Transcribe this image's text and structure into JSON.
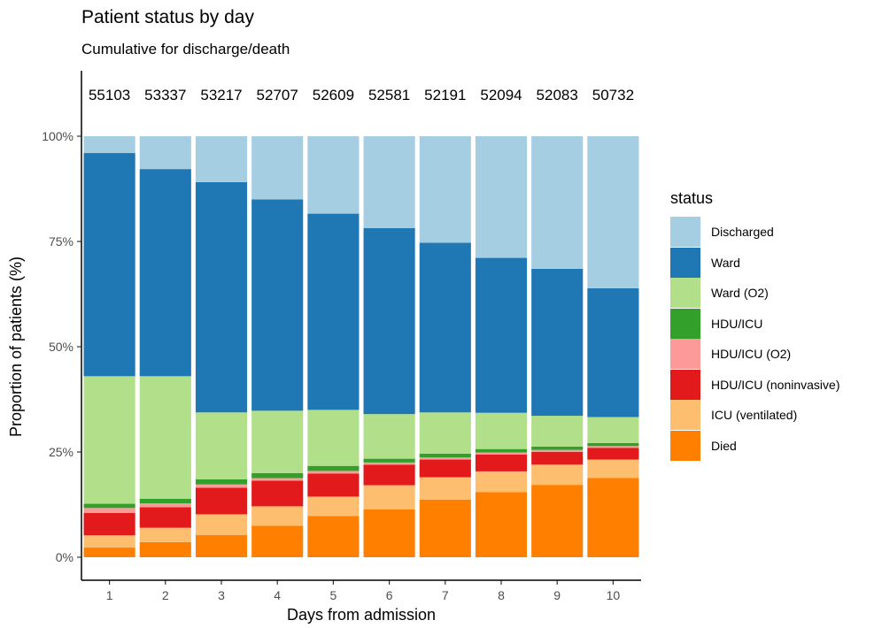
{
  "chart_data": {
    "type": "bar",
    "stacked": true,
    "title": "Patient status by day",
    "subtitle": "Cumulative for discharge/death",
    "xlabel": "Days from admission",
    "ylabel": "Proportion of patients (%)",
    "ylim": [
      0,
      100
    ],
    "yticks": [
      "0%",
      "25%",
      "50%",
      "75%",
      "100%"
    ],
    "ytick_values": [
      0,
      25,
      50,
      75,
      100
    ],
    "categories": [
      "1",
      "2",
      "3",
      "4",
      "5",
      "6",
      "7",
      "8",
      "9",
      "10"
    ],
    "counts": [
      "55103",
      "53337",
      "53217",
      "52707",
      "52609",
      "52581",
      "52191",
      "52094",
      "52083",
      "50732"
    ],
    "legend_title": "status",
    "legend_position": "right",
    "grid": false,
    "series": [
      {
        "name": "Died",
        "color": "#ff7f00",
        "values": [
          2.3,
          3.6,
          5.3,
          7.5,
          9.8,
          11.4,
          13.7,
          15.5,
          17.2,
          18.8
        ]
      },
      {
        "name": "ICU (ventilated)",
        "color": "#fdbf6f",
        "values": [
          2.9,
          3.4,
          4.9,
          4.6,
          4.6,
          5.7,
          5.3,
          4.9,
          4.8,
          4.4
        ]
      },
      {
        "name": "HDU/ICU (noninvasive)",
        "color": "#e31a1c",
        "values": [
          5.3,
          4.9,
          6.3,
          6.1,
          5.5,
          4.9,
          4.2,
          4.0,
          3.0,
          2.8
        ]
      },
      {
        "name": "HDU/ICU (O2)",
        "color": "#fb9a99",
        "values": [
          1.2,
          0.9,
          0.8,
          0.6,
          0.6,
          0.5,
          0.5,
          0.5,
          0.5,
          0.4
        ]
      },
      {
        "name": "HDU/ICU",
        "color": "#33a02c",
        "values": [
          1.0,
          1.1,
          1.2,
          1.2,
          1.2,
          0.9,
          0.9,
          0.8,
          0.8,
          0.7
        ]
      },
      {
        "name": "Ward (O2)",
        "color": "#b2df8a",
        "values": [
          30.3,
          29.1,
          15.9,
          14.8,
          13.3,
          10.6,
          9.8,
          8.6,
          7.3,
          6.2
        ]
      },
      {
        "name": "Ward",
        "color": "#1f78b4",
        "values": [
          53.0,
          49.2,
          54.7,
          50.2,
          46.6,
          44.2,
          40.3,
          36.8,
          34.9,
          30.6
        ]
      },
      {
        "name": "Discharged",
        "color": "#a6cee3",
        "values": [
          4.0,
          7.8,
          10.9,
          15.0,
          18.4,
          21.8,
          25.3,
          28.9,
          31.5,
          36.1
        ]
      }
    ],
    "legend_order": [
      "Discharged",
      "Ward",
      "Ward (O2)",
      "HDU/ICU",
      "HDU/ICU (O2)",
      "HDU/ICU (noninvasive)",
      "ICU (ventilated)",
      "Died"
    ]
  }
}
